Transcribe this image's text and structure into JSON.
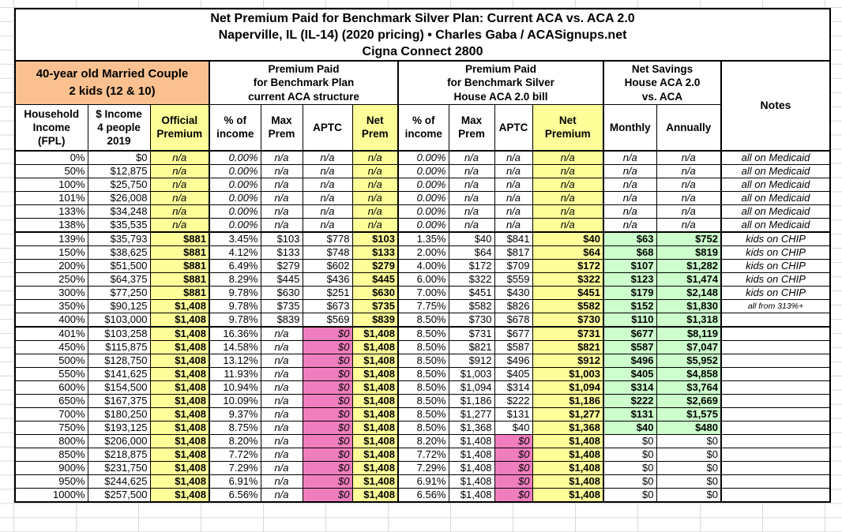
{
  "title": {
    "line1": "Net Premium Paid for Benchmark Silver Plan: Current ACA vs. ACA 2.0",
    "line2": "Naperville, IL (IL-14) (2020 pricing) • Charles Gaba / ACASignups.net",
    "line3": "Cigna Connect 2800"
  },
  "household_header": "40-year old Married Couple\n2 kids (12 & 10)",
  "group_headers": {
    "aca": "Premium Paid\nfor Benchmark Plan\ncurrent ACA structure",
    "aca2": "Premium Paid\nfor Benchmark Silver\nHouse ACA 2.0 bill",
    "savings": "Net Savings\nHouse ACA 2.0\nvs. ACA",
    "notes": "Notes"
  },
  "column_headers": [
    "Household\nIncome\n(FPL)",
    "$ Income\n4 people\n2019",
    "Official\nPremium",
    "% of\nincome",
    "Max\nPrem",
    "APTC",
    "Net\nPrem",
    "% of\nincome",
    "Max\nPrem",
    "APTC",
    "Net\nPremium",
    "Monthly",
    "Annually"
  ],
  "colors": {
    "highlight_yellow": "#FFFF99",
    "pink": "#F07EBE",
    "green": "#CCFFCC",
    "orange": "#FAC090"
  },
  "rows": [
    {
      "group": "medicaid",
      "cells": [
        "0%",
        "$0",
        "n/a",
        "0.00%",
        "n/a",
        "n/a",
        "n/a",
        "0.00%",
        "n/a",
        "n/a",
        "n/a",
        "n/a",
        "n/a",
        "all on Medicaid"
      ]
    },
    {
      "group": "medicaid",
      "cells": [
        "50%",
        "$12,875",
        "n/a",
        "0.00%",
        "n/a",
        "n/a",
        "n/a",
        "0.00%",
        "n/a",
        "n/a",
        "n/a",
        "n/a",
        "n/a",
        "all on Medicaid"
      ]
    },
    {
      "group": "medicaid",
      "cells": [
        "100%",
        "$25,750",
        "n/a",
        "0.00%",
        "n/a",
        "n/a",
        "n/a",
        "0.00%",
        "n/a",
        "n/a",
        "n/a",
        "n/a",
        "n/a",
        "all on Medicaid"
      ]
    },
    {
      "group": "medicaid",
      "cells": [
        "101%",
        "$26,008",
        "n/a",
        "0.00%",
        "n/a",
        "n/a",
        "n/a",
        "0.00%",
        "n/a",
        "n/a",
        "n/a",
        "n/a",
        "n/a",
        "all on Medicaid"
      ]
    },
    {
      "group": "medicaid",
      "cells": [
        "133%",
        "$34,248",
        "n/a",
        "0.00%",
        "n/a",
        "n/a",
        "n/a",
        "0.00%",
        "n/a",
        "n/a",
        "n/a",
        "n/a",
        "n/a",
        "all on Medicaid"
      ]
    },
    {
      "group": "medicaid",
      "cells": [
        "138%",
        "$35,535",
        "n/a",
        "0.00%",
        "n/a",
        "n/a",
        "n/a",
        "0.00%",
        "n/a",
        "n/a",
        "n/a",
        "n/a",
        "n/a",
        "all on Medicaid"
      ]
    },
    {
      "group": "subsidized",
      "cells": [
        "139%",
        "$35,793",
        "$881",
        "3.45%",
        "$103",
        "$778",
        "$103",
        "1.35%",
        "$40",
        "$841",
        "$40",
        "$63",
        "$752",
        "kids on CHIP"
      ]
    },
    {
      "group": "subsidized",
      "cells": [
        "150%",
        "$38,625",
        "$881",
        "4.12%",
        "$133",
        "$748",
        "$133",
        "2.00%",
        "$64",
        "$817",
        "$64",
        "$68",
        "$819",
        "kids on CHIP"
      ]
    },
    {
      "group": "subsidized",
      "cells": [
        "200%",
        "$51,500",
        "$881",
        "6.49%",
        "$279",
        "$602",
        "$279",
        "4.00%",
        "$172",
        "$709",
        "$172",
        "$107",
        "$1,282",
        "kids on CHIP"
      ]
    },
    {
      "group": "subsidized",
      "cells": [
        "250%",
        "$64,375",
        "$881",
        "8.29%",
        "$445",
        "$436",
        "$445",
        "6.00%",
        "$322",
        "$559",
        "$322",
        "$123",
        "$1,474",
        "kids on CHIP"
      ]
    },
    {
      "group": "subsidized",
      "cells": [
        "300%",
        "$77,250",
        "$881",
        "9.78%",
        "$630",
        "$251",
        "$630",
        "7.00%",
        "$451",
        "$430",
        "$451",
        "$179",
        "$2,148",
        "kids on CHIP"
      ]
    },
    {
      "group": "subsidized",
      "cells": [
        "350%",
        "$90,125",
        "$1,408",
        "9.78%",
        "$735",
        "$673",
        "$735",
        "7.75%",
        "$582",
        "$826",
        "$582",
        "$152",
        "$1,830",
        "all from 313%+"
      ]
    },
    {
      "group": "subsidized",
      "cells": [
        "400%",
        "$103,000",
        "$1,408",
        "9.78%",
        "$839",
        "$569",
        "$839",
        "8.50%",
        "$730",
        "$678",
        "$730",
        "$110",
        "$1,318",
        ""
      ]
    },
    {
      "group": "cliff",
      "cells": [
        "401%",
        "$103,258",
        "$1,408",
        "16.36%",
        "n/a",
        "$0",
        "$1,408",
        "8.50%",
        "$731",
        "$677",
        "$731",
        "$677",
        "$8,119",
        ""
      ]
    },
    {
      "group": "cliff",
      "cells": [
        "450%",
        "$115,875",
        "$1,408",
        "14.58%",
        "n/a",
        "$0",
        "$1,408",
        "8.50%",
        "$821",
        "$587",
        "$821",
        "$587",
        "$7,047",
        ""
      ]
    },
    {
      "group": "cliff",
      "cells": [
        "500%",
        "$128,750",
        "$1,408",
        "13.12%",
        "n/a",
        "$0",
        "$1,408",
        "8.50%",
        "$912",
        "$496",
        "$912",
        "$496",
        "$5,952",
        ""
      ]
    },
    {
      "group": "cliff",
      "cells": [
        "550%",
        "$141,625",
        "$1,408",
        "11.93%",
        "n/a",
        "$0",
        "$1,408",
        "8.50%",
        "$1,003",
        "$405",
        "$1,003",
        "$405",
        "$4,858",
        ""
      ]
    },
    {
      "group": "cliff",
      "cells": [
        "600%",
        "$154,500",
        "$1,408",
        "10.94%",
        "n/a",
        "$0",
        "$1,408",
        "8.50%",
        "$1,094",
        "$314",
        "$1,094",
        "$314",
        "$3,764",
        ""
      ]
    },
    {
      "group": "cliff",
      "cells": [
        "650%",
        "$167,375",
        "$1,408",
        "10.09%",
        "n/a",
        "$0",
        "$1,408",
        "8.50%",
        "$1,186",
        "$222",
        "$1,186",
        "$222",
        "$2,669",
        ""
      ]
    },
    {
      "group": "cliff",
      "cells": [
        "700%",
        "$180,250",
        "$1,408",
        "9.37%",
        "n/a",
        "$0",
        "$1,408",
        "8.50%",
        "$1,277",
        "$131",
        "$1,277",
        "$131",
        "$1,575",
        ""
      ]
    },
    {
      "group": "cliff",
      "cells": [
        "750%",
        "$193,125",
        "$1,408",
        "8.75%",
        "n/a",
        "$0",
        "$1,408",
        "8.50%",
        "$1,368",
        "$40",
        "$1,368",
        "$40",
        "$480",
        ""
      ]
    },
    {
      "group": "over800",
      "cells": [
        "800%",
        "$206,000",
        "$1,408",
        "8.20%",
        "n/a",
        "$0",
        "$1,408",
        "8.20%",
        "$1,408",
        "$0",
        "$1,408",
        "$0",
        "$0",
        ""
      ]
    },
    {
      "group": "over800",
      "cells": [
        "850%",
        "$218,875",
        "$1,408",
        "7.72%",
        "n/a",
        "$0",
        "$1,408",
        "7.72%",
        "$1,408",
        "$0",
        "$1,408",
        "$0",
        "$0",
        ""
      ]
    },
    {
      "group": "over800",
      "cells": [
        "900%",
        "$231,750",
        "$1,408",
        "7.29%",
        "n/a",
        "$0",
        "$1,408",
        "7.29%",
        "$1,408",
        "$0",
        "$1,408",
        "$0",
        "$0",
        ""
      ]
    },
    {
      "group": "over800",
      "cells": [
        "950%",
        "$244,625",
        "$1,408",
        "6.91%",
        "n/a",
        "$0",
        "$1,408",
        "6.91%",
        "$1,408",
        "$0",
        "$1,408",
        "$0",
        "$0",
        ""
      ]
    },
    {
      "group": "over800",
      "cells": [
        "1000%",
        "$257,500",
        "$1,408",
        "6.56%",
        "n/a",
        "$0",
        "$1,408",
        "6.56%",
        "$1,408",
        "$0",
        "$1,408",
        "$0",
        "$0",
        ""
      ]
    }
  ]
}
